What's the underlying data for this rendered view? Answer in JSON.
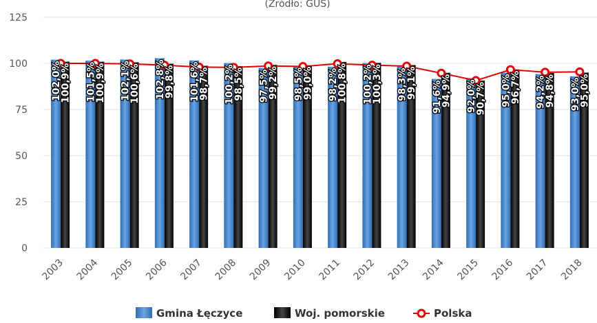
{
  "chart_data": {
    "type": "bar",
    "subtitle": "(Źródło: GUS)",
    "categories": [
      "2003",
      "2004",
      "2005",
      "2006",
      "2007",
      "2008",
      "2009",
      "2010",
      "2011",
      "2012",
      "2013",
      "2014",
      "2015",
      "2016",
      "2017",
      "2018"
    ],
    "series": [
      {
        "name": "Gmina Łęczyce",
        "color": "#4a86c8",
        "values": [
          102.0,
          101.5,
          102.1,
          102.8,
          101.6,
          100.2,
          97.5,
          98.5,
          98.2,
          100.2,
          98.3,
          91.6,
          92.0,
          95.0,
          94.2,
          93.0
        ],
        "value_labels": [
          "102,0%",
          "101,5%",
          "102,1%",
          "102,8%",
          "101,6%",
          "100,2%",
          "97,5%",
          "98,5%",
          "98,2%",
          "100,2%",
          "98,3%",
          "91,6%",
          "92,0%",
          "95,0%",
          "94,2%",
          "93,0%"
        ]
      },
      {
        "name": "Woj. pomorskie",
        "color": "#222222",
        "values": [
          100.9,
          100.9,
          100.6,
          99.8,
          98.7,
          98.5,
          99.2,
          99.0,
          100.8,
          100.3,
          99.1,
          94.9,
          90.7,
          96.7,
          94.8,
          95.0
        ],
        "value_labels": [
          "100,9%",
          "100,9%",
          "100,6%",
          "99,8%",
          "98,7%",
          "98,5%",
          "99,2%",
          "99,0%",
          "100,8%",
          "100,3%",
          "99,1%",
          "94,9%",
          "90,7%",
          "96,7%",
          "94,8%",
          "95,0%"
        ]
      },
      {
        "name": "Polska",
        "type": "line",
        "color": "#e00000",
        "values": [
          100.0,
          100.0,
          99.7,
          99.0,
          98.0,
          97.8,
          98.6,
          98.3,
          99.8,
          99.0,
          98.5,
          94.7,
          90.7,
          96.6,
          95.2,
          95.4
        ]
      }
    ],
    "ylim": [
      0,
      125
    ],
    "yticks": [
      0,
      25,
      50,
      75,
      100,
      125
    ],
    "grid": true
  }
}
